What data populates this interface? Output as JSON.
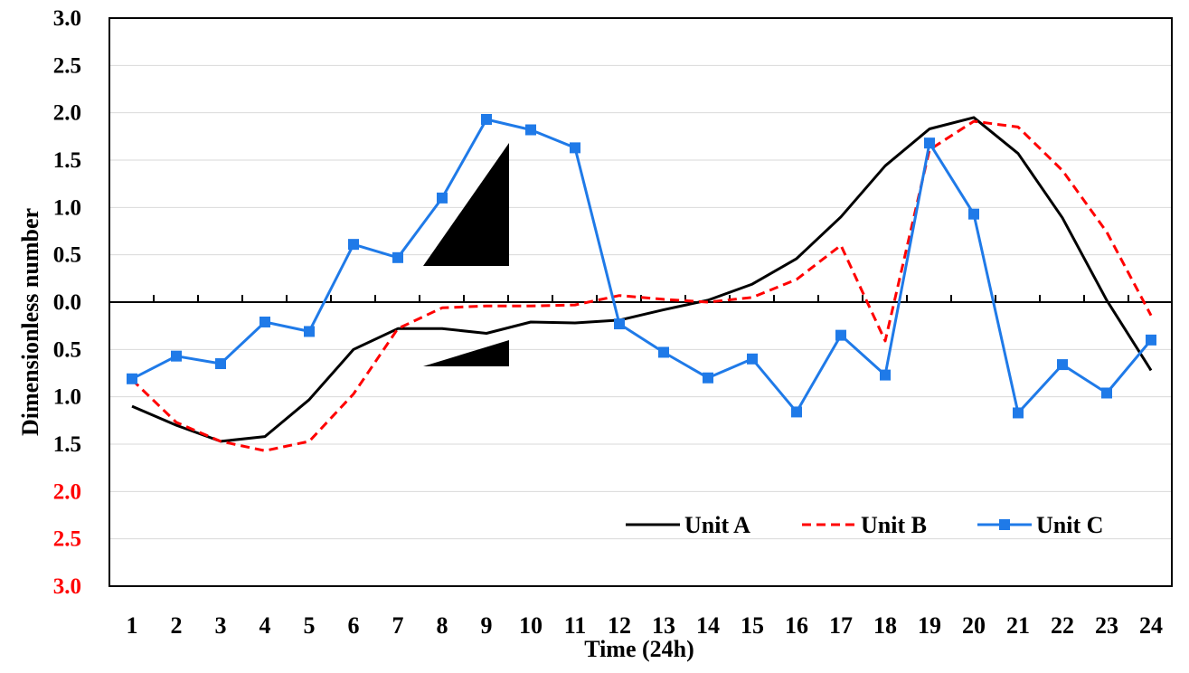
{
  "chart_data": {
    "type": "line",
    "xlabel": "Time  (24h)",
    "ylabel": "Dimensionless  number",
    "x": [
      1,
      2,
      3,
      4,
      5,
      6,
      7,
      8,
      9,
      10,
      11,
      12,
      13,
      14,
      15,
      16,
      17,
      18,
      19,
      20,
      21,
      22,
      23,
      24
    ],
    "ylim": [
      -3.0,
      3.0
    ],
    "y_ticks": [
      {
        "value": 3.0,
        "label": "3.0",
        "color": "#000000"
      },
      {
        "value": 2.5,
        "label": "2.5",
        "color": "#000000"
      },
      {
        "value": 2.0,
        "label": "2.0",
        "color": "#000000"
      },
      {
        "value": 1.5,
        "label": "1.5",
        "color": "#000000"
      },
      {
        "value": 1.0,
        "label": "1.0",
        "color": "#000000"
      },
      {
        "value": 0.5,
        "label": "0.5",
        "color": "#000000"
      },
      {
        "value": 0.0,
        "label": "0.0",
        "color": "#000000"
      },
      {
        "value": -0.5,
        "label": "0.5",
        "color": "#000000"
      },
      {
        "value": -1.0,
        "label": "1.0",
        "color": "#000000"
      },
      {
        "value": -1.5,
        "label": "1.5",
        "color": "#000000"
      },
      {
        "value": -2.0,
        "label": "2.0",
        "color": "#ff0000"
      },
      {
        "value": -2.5,
        "label": "2.5",
        "color": "#ff0000"
      },
      {
        "value": -3.0,
        "label": "3.0",
        "color": "#ff0000"
      }
    ],
    "grid": true,
    "legend_position": "bottom-right",
    "series": [
      {
        "name": "Unit A",
        "color": "#000000",
        "style": "solid",
        "marker": "none",
        "values": [
          -1.1,
          -1.3,
          -1.47,
          -1.42,
          -1.03,
          -0.5,
          -0.28,
          -0.28,
          -0.33,
          -0.21,
          -0.22,
          -0.19,
          -0.08,
          0.02,
          0.19,
          0.46,
          0.9,
          1.44,
          1.83,
          1.95,
          1.57,
          0.89,
          0.02,
          -0.72
        ]
      },
      {
        "name": "Unit B",
        "color": "#ff0000",
        "style": "dashed",
        "marker": "none",
        "values": [
          -0.82,
          -1.27,
          -1.47,
          -1.57,
          -1.47,
          -0.97,
          -0.28,
          -0.06,
          -0.04,
          -0.04,
          -0.03,
          0.07,
          0.03,
          0.0,
          0.05,
          0.24,
          0.6,
          -0.41,
          1.61,
          1.91,
          1.85,
          1.39,
          0.74,
          -0.14
        ]
      },
      {
        "name": "Unit C",
        "color": "#1f7ae8",
        "style": "solid",
        "marker": "square",
        "values": [
          -0.81,
          -0.57,
          -0.65,
          -0.21,
          -0.31,
          0.61,
          0.47,
          1.1,
          1.93,
          1.82,
          1.63,
          -0.23,
          -0.53,
          -0.8,
          -0.6,
          -1.16,
          -0.35,
          -0.77,
          1.68,
          0.93,
          -1.17,
          -0.66,
          -0.96,
          -0.4
        ]
      }
    ]
  }
}
